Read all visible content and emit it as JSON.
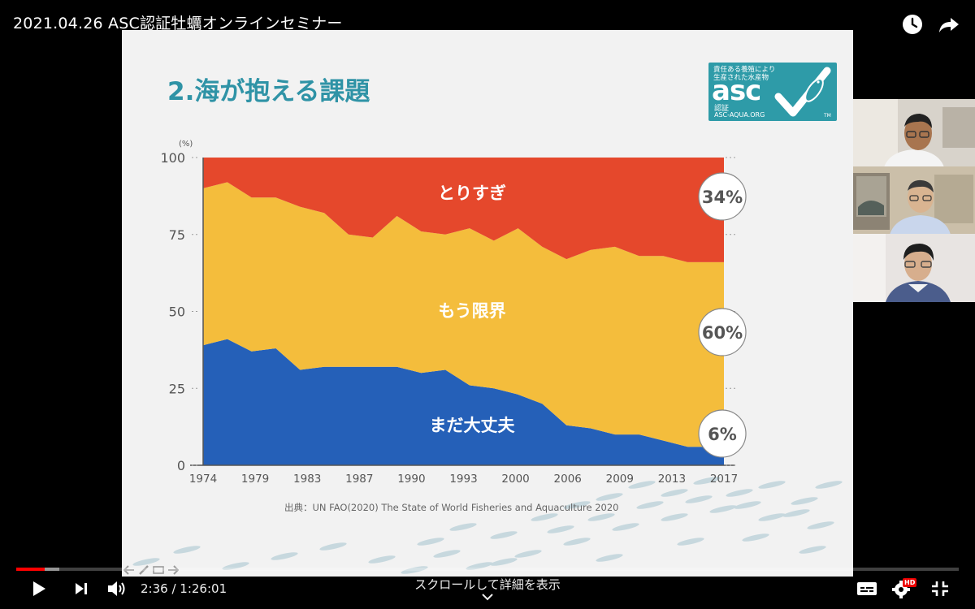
{
  "video": {
    "title": "2021.04.26 ASC認証牡蠣オンラインセミナー",
    "current_time": "2:36",
    "separator": " / ",
    "duration": "1:26:01",
    "progress_fraction": 0.0302,
    "scroll_hint": "スクロールして詳細を表示",
    "hd_badge": "HD"
  },
  "icons": {
    "watch_later": "clock-icon",
    "share": "share-icon",
    "play": "play-icon",
    "next": "next-icon",
    "volume": "volume-icon",
    "subtitles": "subtitles-icon",
    "settings": "gear-icon",
    "exit_fullscreen": "exit-fullscreen-icon",
    "chevron": "chevron-down-icon"
  },
  "slide": {
    "heading": "2.海が抱える課題",
    "source": "出典：UN FAO(2020) The State of World Fisheries and Aquaculture 2020",
    "logo": {
      "top_text_line1": "責任ある養殖により",
      "top_text_line2": "生産された水産物",
      "word": "asc",
      "cert": "認証",
      "url": "ASC-AQUA.ORG",
      "tm": "TM"
    }
  },
  "chart_data": {
    "type": "area",
    "stacked": true,
    "unit_label": "(%)",
    "ylim": [
      0,
      100
    ],
    "y_ticks": [
      "0",
      "25",
      "50",
      "75",
      "100"
    ],
    "x_tick_labels": [
      "1974",
      "1979",
      "1983",
      "1987",
      "1990",
      "1993",
      "2000",
      "2006",
      "2009",
      "2013",
      "2017"
    ],
    "x": [
      1974,
      1976,
      1978,
      1980,
      1982,
      1984,
      1986,
      1988,
      1990,
      1992,
      1994,
      1996,
      1998,
      2000,
      2002,
      2004,
      2006,
      2008,
      2010,
      2012,
      2014,
      2017
    ],
    "series": [
      {
        "name": "まだ大丈夫",
        "color": "#2560b8",
        "values": [
          39,
          41,
          37,
          38,
          31,
          32,
          32,
          32,
          32,
          30,
          31,
          26,
          25,
          23,
          20,
          13,
          12,
          10,
          10,
          8,
          6,
          6
        ]
      },
      {
        "name": "もう限界",
        "color": "#f4bd3c",
        "values": [
          51,
          51,
          50,
          49,
          53,
          50,
          43,
          42,
          49,
          46,
          44,
          51,
          48,
          54,
          51,
          54,
          58,
          61,
          58,
          60,
          60,
          60
        ]
      },
      {
        "name": "とりすぎ",
        "color": "#e5482c",
        "values": [
          10,
          8,
          13,
          13,
          16,
          18,
          25,
          26,
          19,
          24,
          25,
          23,
          27,
          23,
          29,
          33,
          30,
          29,
          32,
          32,
          34,
          34
        ]
      }
    ],
    "end_callouts": [
      "34%",
      "60%",
      "6%"
    ]
  }
}
